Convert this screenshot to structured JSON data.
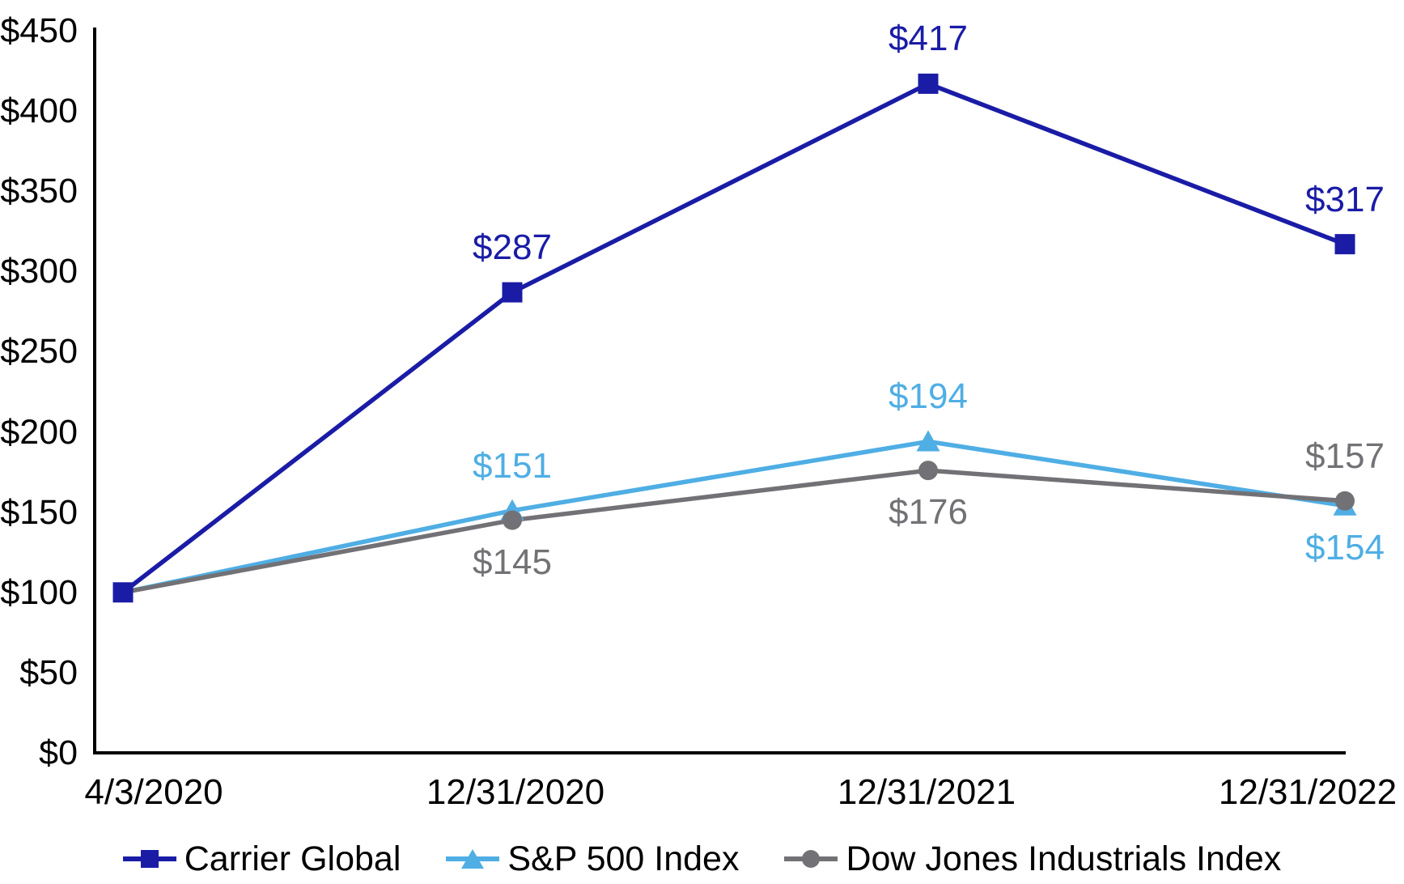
{
  "chart_data": {
    "type": "line",
    "title": "",
    "xlabel": "",
    "ylabel": "",
    "x_categories": [
      "4/3/2020",
      "12/31/2020",
      "12/31/2021",
      "12/31/2022"
    ],
    "y_ticks": [
      "$450",
      "$400",
      "$350",
      "$300",
      "$250",
      "$200",
      "$150",
      "$100",
      "$50",
      "$0"
    ],
    "ylim": [
      0,
      450
    ],
    "y_tick_interval": 50,
    "grid": false,
    "legend_position": "bottom",
    "axis_color": "#000000",
    "series": [
      {
        "name": "Carrier Global",
        "color": "#1A1CA6",
        "marker": "square",
        "values": [
          100,
          287,
          417,
          317
        ],
        "data_labels": [
          "",
          "$287",
          "$417",
          "$317"
        ],
        "label_positions": [
          "none",
          "above",
          "above",
          "above"
        ]
      },
      {
        "name": "S&P 500 Index",
        "color": "#4FAEE4",
        "marker": "triangle",
        "values": [
          100,
          151,
          194,
          154
        ],
        "data_labels": [
          "",
          "$151",
          "$194",
          "$154"
        ],
        "label_positions": [
          "none",
          "above",
          "above",
          "below"
        ]
      },
      {
        "name": "Dow Jones Industrials Index",
        "color": "#727276",
        "marker": "circle",
        "values": [
          100,
          145,
          176,
          157
        ],
        "data_labels": [
          "",
          "$145",
          "$176",
          "$157"
        ],
        "label_positions": [
          "none",
          "below",
          "below",
          "above"
        ]
      }
    ]
  }
}
